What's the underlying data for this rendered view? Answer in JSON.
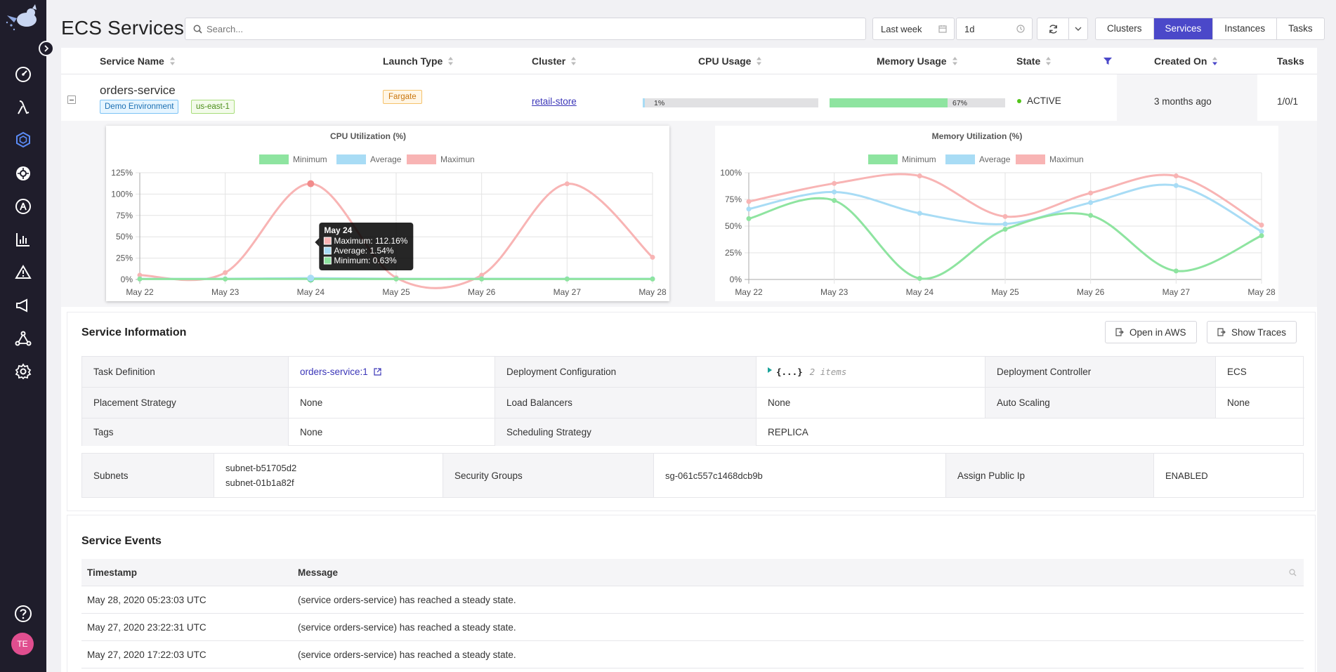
{
  "page": {
    "title": "ECS Services"
  },
  "search": {
    "placeholder": "Search..."
  },
  "toolbar": {
    "time_range": "Last week",
    "interval": "1d"
  },
  "nav_tabs": [
    {
      "label": "Clusters",
      "active": false
    },
    {
      "label": "Services",
      "active": true
    },
    {
      "label": "Instances",
      "active": false
    },
    {
      "label": "Tasks",
      "active": false
    }
  ],
  "table": {
    "columns": [
      "Service Name",
      "Launch Type",
      "Cluster",
      "CPU Usage",
      "Memory Usage",
      "State",
      "Created On",
      "Tasks"
    ],
    "row": {
      "service_name": "orders-service",
      "tags": [
        "Demo Environment",
        "us-east-1"
      ],
      "launch_type": "Fargate",
      "cluster": "retail-store",
      "cpu_usage": "1%",
      "cpu_fraction": 0.01,
      "memory_usage": "67%",
      "memory_fraction": 0.67,
      "state": "ACTIVE",
      "created_on": "3 months ago",
      "tasks": "1/0/1"
    }
  },
  "chart_data": [
    {
      "type": "line",
      "title": "CPU Utilization (%)",
      "x": [
        "May 22",
        "May 23",
        "May 24",
        "May 25",
        "May 26",
        "May 27",
        "May 28"
      ],
      "y_ticks": [
        "0%",
        "25%",
        "50%",
        "75%",
        "100%",
        "125%"
      ],
      "ylim": [
        0,
        125
      ],
      "legend_position": "top",
      "series": [
        {
          "name": "Minimum",
          "color": "#8ee4a0",
          "values": [
            0.5,
            0.5,
            0.63,
            0.5,
            0.5,
            0.5,
            0.5
          ]
        },
        {
          "name": "Average",
          "color": "#a8dcf5",
          "values": [
            0.7,
            0.8,
            1.54,
            0.8,
            0.8,
            0.8,
            0.8
          ]
        },
        {
          "name": "Maximun",
          "color": "#f8b4b4",
          "values": [
            5,
            8,
            112.16,
            2,
            5,
            112,
            26
          ]
        }
      ],
      "tooltip": {
        "title": "May 24",
        "lines": [
          "Maximum: 112.16%",
          "Average: 1.54%",
          "Minimum: 0.63%"
        ]
      }
    },
    {
      "type": "line",
      "title": "Memory Utilization (%)",
      "x": [
        "May 22",
        "May 23",
        "May 24",
        "May 25",
        "May 26",
        "May 27",
        "May 28"
      ],
      "y_ticks": [
        "0%",
        "25%",
        "50%",
        "75%",
        "100%"
      ],
      "ylim": [
        0,
        100
      ],
      "legend_position": "top",
      "series": [
        {
          "name": "Minimum",
          "color": "#8ee4a0",
          "values": [
            57,
            74,
            1,
            47,
            60,
            8,
            41
          ]
        },
        {
          "name": "Average",
          "color": "#a8dcf5",
          "values": [
            66,
            82,
            62,
            52,
            72,
            88,
            45
          ]
        },
        {
          "name": "Maximun",
          "color": "#f8b4b4",
          "values": [
            73,
            90,
            97,
            59,
            81,
            97,
            51
          ]
        }
      ]
    }
  ],
  "service_info": {
    "title": "Service Information",
    "open_aws": "Open in AWS",
    "show_traces": "Show Traces",
    "task_definition_label": "Task Definition",
    "task_definition": "orders-service:1",
    "deployment_configuration_label": "Deployment Configuration",
    "deployment_configuration_braces": "{...}",
    "deployment_configuration_count": "2 items",
    "deployment_controller_label": "Deployment Controller",
    "deployment_controller": "ECS",
    "placement_strategy_label": "Placement Strategy",
    "placement_strategy": "None",
    "load_balancers_label": "Load Balancers",
    "load_balancers": "None",
    "auto_scaling_label": "Auto Scaling",
    "auto_scaling": "None",
    "tags_label": "Tags",
    "tags": "None",
    "scheduling_strategy_label": "Scheduling Strategy",
    "scheduling_strategy": "REPLICA",
    "subnets_label": "Subnets",
    "subnets": [
      "subnet-b51705d2",
      "subnet-01b1a82f"
    ],
    "security_groups_label": "Security Groups",
    "security_groups": "sg-061c557c1468dcb9b",
    "assign_public_ip_label": "Assign Public Ip",
    "assign_public_ip": "ENABLED"
  },
  "events": {
    "title": "Service Events",
    "columns": [
      "Timestamp",
      "Message"
    ],
    "rows": [
      {
        "timestamp": "May 28, 2020 05:23:03 UTC",
        "message": "(service orders-service) has reached a steady state."
      },
      {
        "timestamp": "May 27, 2020 23:22:31 UTC",
        "message": "(service orders-service) has reached a steady state."
      },
      {
        "timestamp": "May 27, 2020 17:22:03 UTC",
        "message": "(service orders-service) has reached a steady state."
      }
    ]
  },
  "user": {
    "initials": "TE"
  }
}
